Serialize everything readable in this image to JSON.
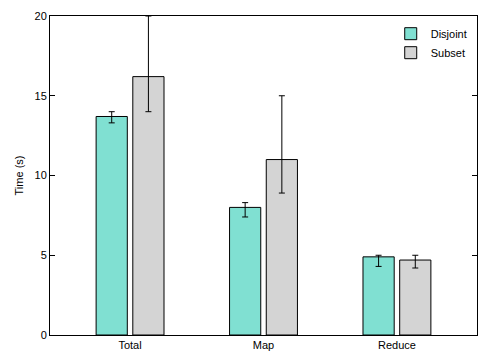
{
  "chart_data": {
    "type": "bar",
    "y_label": "Time (s)",
    "categories": [
      "Total",
      "Map",
      "Reduce"
    ],
    "series": [
      {
        "name": "Disjoint",
        "color": "#80e0d2",
        "values": [
          13.7,
          8.0,
          4.9
        ],
        "error_plus": [
          0.3,
          0.3,
          0.1
        ],
        "error_minus": [
          0.4,
          0.6,
          0.6
        ]
      },
      {
        "name": "Subset",
        "color": "#d4d4d4",
        "values": [
          16.2,
          11.0,
          4.7
        ],
        "error_plus": [
          3.8,
          4.0,
          0.3
        ],
        "error_minus": [
          2.2,
          2.1,
          0.5
        ]
      }
    ],
    "ylim": [
      0,
      20
    ],
    "yticks": [
      0,
      5,
      10,
      15,
      20
    ],
    "grid": false,
    "legend": "top-right"
  }
}
